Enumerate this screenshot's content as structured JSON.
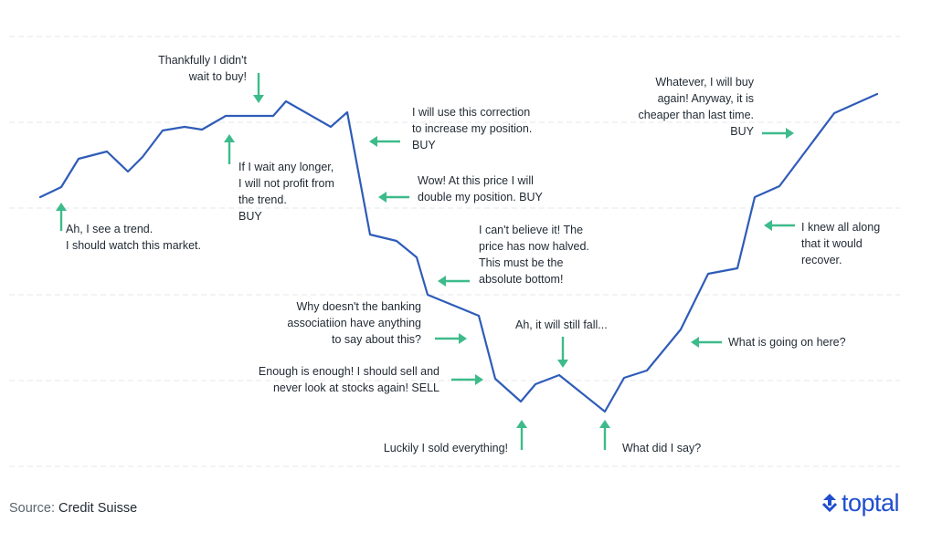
{
  "chart_data": {
    "type": "line",
    "title": "",
    "xlabel": "",
    "ylabel": "",
    "grid": true,
    "line_color": "#2f5cb8",
    "arrow_color": "#3dbb8a",
    "series": [
      {
        "points": [
          [
            44,
            216
          ],
          [
            67,
            205
          ],
          [
            86,
            174
          ],
          [
            117,
            166
          ],
          [
            140,
            188
          ],
          [
            156,
            172
          ],
          [
            178,
            143
          ],
          [
            202,
            139
          ],
          [
            221,
            142
          ],
          [
            247,
            127
          ],
          [
            299,
            127
          ],
          [
            313,
            111
          ],
          [
            362,
            139
          ],
          [
            380,
            123
          ],
          [
            405,
            257
          ],
          [
            434,
            264
          ],
          [
            456,
            282
          ],
          [
            468,
            323
          ],
          [
            524,
            346
          ],
          [
            542,
            415
          ],
          [
            570,
            440
          ],
          [
            586,
            421
          ],
          [
            612,
            411
          ],
          [
            662,
            451
          ],
          [
            683,
            414
          ],
          [
            708,
            406
          ],
          [
            745,
            361
          ],
          [
            775,
            300
          ],
          [
            807,
            294
          ],
          [
            826,
            216
          ],
          [
            853,
            204
          ],
          [
            913,
            124
          ],
          [
            960,
            103
          ]
        ]
      }
    ],
    "annotations": [
      {
        "text": "Ah, I see a trend.\nI should watch this market.",
        "align": "left",
        "arrow": "up"
      },
      {
        "text": "Thankfully I didn't\nwait to buy!",
        "align": "right",
        "arrow": "down"
      },
      {
        "text": "If I wait any longer,\nI will not profit from\nthe trend.\nBUY",
        "align": "left",
        "arrow": "up"
      },
      {
        "text": "I will use this correction\nto increase my position.\nBUY",
        "align": "left",
        "arrow": "left"
      },
      {
        "text": "Wow! At this price I will\ndouble my position. BUY",
        "align": "left",
        "arrow": "left"
      },
      {
        "text": "I can't believe it! The\nprice has now halved.\nThis must be the\nabsolute bottom!",
        "align": "left",
        "arrow": "left"
      },
      {
        "text": "Why doesn't the banking\nassociatiion have anything\nto say about this?",
        "align": "right",
        "arrow": "right"
      },
      {
        "text": "Ah, it will still fall...",
        "align": "left",
        "arrow": "down"
      },
      {
        "text": "Enough is enough! I should sell and\nnever look at stocks again! SELL",
        "align": "right",
        "arrow": "right"
      },
      {
        "text": "Luckily I sold everything!",
        "align": "right",
        "arrow": "up"
      },
      {
        "text": "What did I say?",
        "align": "left",
        "arrow": "up"
      },
      {
        "text": "What is going on here?",
        "align": "left",
        "arrow": "left"
      },
      {
        "text": "I knew all along\nthat it would\nrecover.",
        "align": "left",
        "arrow": "left"
      },
      {
        "text": "Whatever, I will buy\nagain! Anyway, it is\ncheaper than last time.\nBUY",
        "align": "right",
        "arrow": "right"
      }
    ]
  },
  "footer": {
    "source_label": "Source: ",
    "source_value": "Credit Suisse",
    "brand": "toptal"
  }
}
